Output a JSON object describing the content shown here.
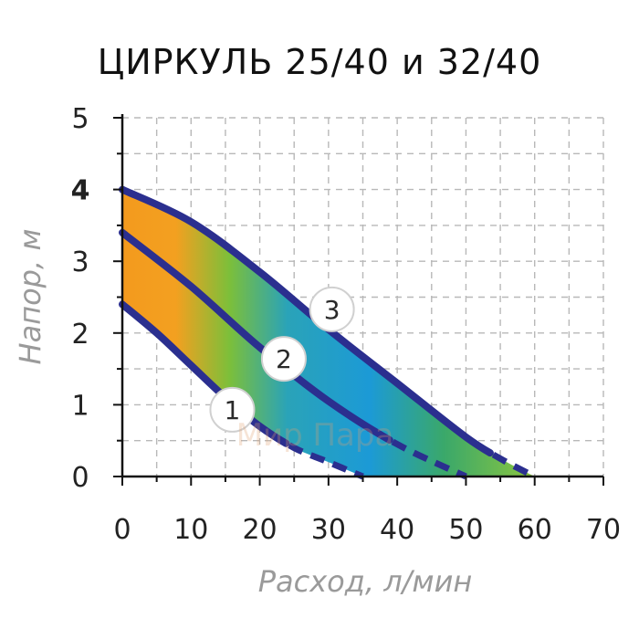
{
  "chart_data": {
    "type": "line",
    "title": "ЦИРКУЛЬ 25/40 и 32/40",
    "xlabel": "Расход, л/мин",
    "ylabel": "Напор, м",
    "xlim": [
      0,
      70
    ],
    "ylim": [
      0,
      5
    ],
    "xticks": [
      "0",
      "10",
      "20",
      "30",
      "40",
      "50",
      "60",
      "70"
    ],
    "yticks": [
      "0",
      "1",
      "2",
      "3",
      "4",
      "5"
    ],
    "highlighted_ytick": "4",
    "grid": true,
    "series": [
      {
        "name": "1",
        "x": [
          0,
          5,
          10,
          15,
          20,
          25,
          30,
          35
        ],
        "y": [
          2.4,
          2.0,
          1.55,
          1.1,
          0.7,
          0.4,
          0.2,
          0.0
        ]
      },
      {
        "name": "2",
        "x": [
          0,
          10,
          20,
          30,
          40,
          50
        ],
        "y": [
          3.4,
          2.65,
          1.8,
          1.05,
          0.45,
          0.0
        ]
      },
      {
        "name": "3",
        "x": [
          0,
          10,
          20,
          30,
          40,
          50,
          55,
          60
        ],
        "y": [
          4.0,
          3.55,
          2.85,
          2.05,
          1.3,
          0.55,
          0.25,
          0.0
        ]
      }
    ],
    "watermark": "Мир Пара",
    "colors": {
      "curve": "#2b2f8f",
      "fill_orange": "#f39a1e",
      "fill_green": "#4fb848",
      "fill_blue": "#1c9ad6",
      "highlight_tick": "#1e9bd7",
      "axis_title": "#9a9a9a"
    }
  }
}
